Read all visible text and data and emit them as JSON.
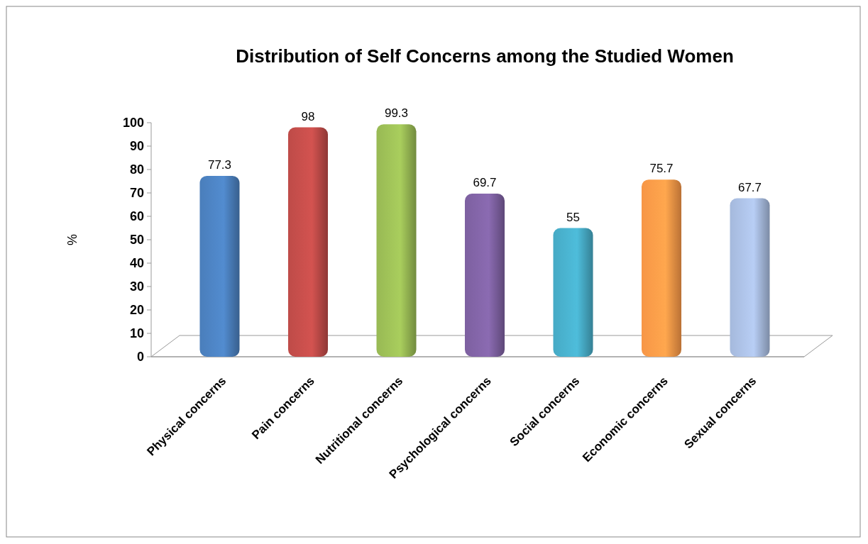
{
  "chart_data": {
    "type": "bar",
    "title": "Distribution of Self Concerns among the Studied Women",
    "ylabel": "%",
    "categories": [
      "Physical concerns",
      "Pain concerns",
      "Nutritional concerns",
      "Psychological concerns",
      "Social concerns",
      "Economic concerns",
      "Sexual concerns"
    ],
    "values": [
      77.3,
      98,
      99.3,
      69.7,
      55,
      75.7,
      67.7
    ],
    "colors": [
      "#4a7ebb",
      "#be4b48",
      "#98b954",
      "#7d60a0",
      "#46aac5",
      "#f79646",
      "#a5b9dc"
    ],
    "ylim": [
      0,
      100
    ],
    "yticks": [
      0,
      10,
      20,
      30,
      40,
      50,
      60,
      70,
      80,
      90,
      100
    ],
    "data_labels": true,
    "grid": false
  }
}
